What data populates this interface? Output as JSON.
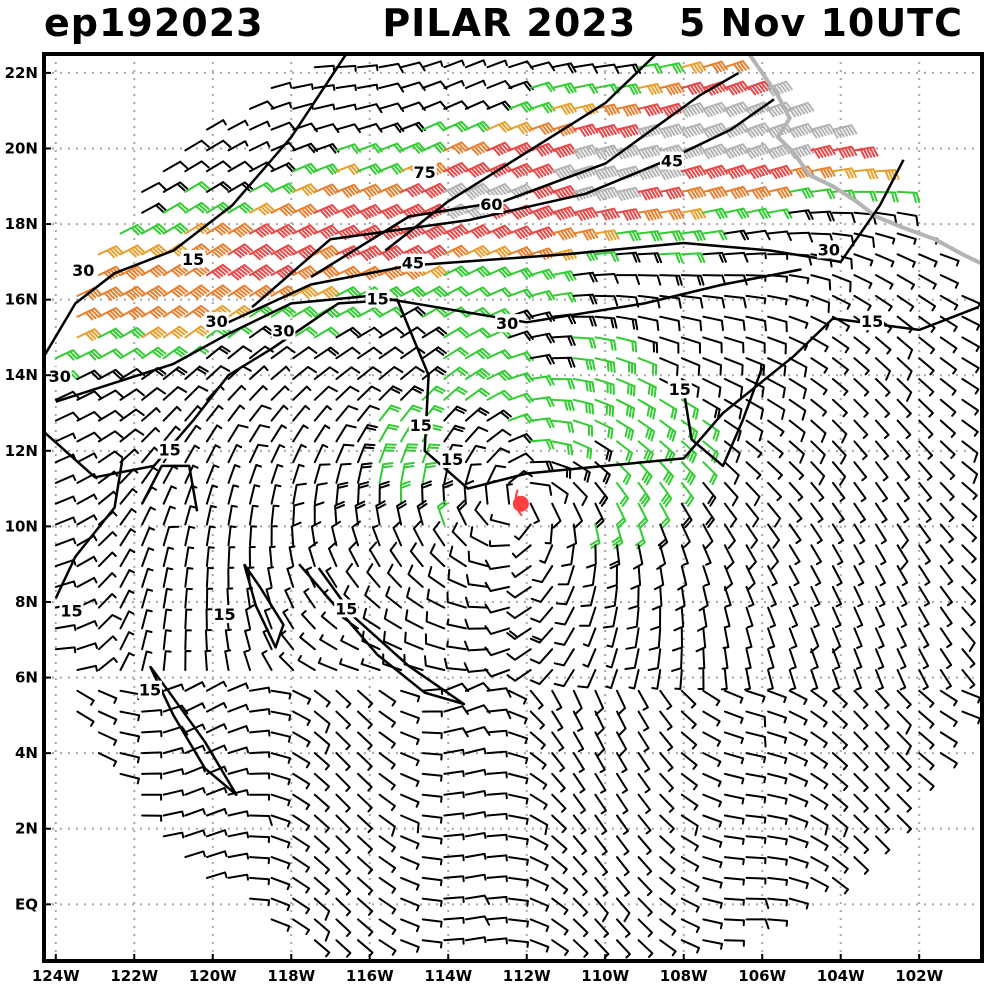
{
  "header": {
    "storm_id": "ep192023",
    "title": "PILAR 2023   5 Nov 10UTC"
  },
  "map": {
    "lon_range": [
      -124.3,
      -100.4
    ],
    "lat_range": [
      -1.5,
      22.5
    ],
    "lon_ticks": [
      {
        "value": -124,
        "label": "124W"
      },
      {
        "value": -122,
        "label": "122W"
      },
      {
        "value": -120,
        "label": "120W"
      },
      {
        "value": -118,
        "label": "118W"
      },
      {
        "value": -116,
        "label": "116W"
      },
      {
        "value": -114,
        "label": "114W"
      },
      {
        "value": -112,
        "label": "112W"
      },
      {
        "value": -110,
        "label": "110W"
      },
      {
        "value": -108,
        "label": "108W"
      },
      {
        "value": -106,
        "label": "106W"
      },
      {
        "value": -104,
        "label": "104W"
      },
      {
        "value": -102,
        "label": "102W"
      }
    ],
    "lat_ticks": [
      {
        "value": 22,
        "label": "22N"
      },
      {
        "value": 20,
        "label": "20N"
      },
      {
        "value": 18,
        "label": "18N"
      },
      {
        "value": 16,
        "label": "16N"
      },
      {
        "value": 14,
        "label": "14N"
      },
      {
        "value": 12,
        "label": "12N"
      },
      {
        "value": 10,
        "label": "10N"
      },
      {
        "value": 8,
        "label": "8N"
      },
      {
        "value": 6,
        "label": "6N"
      },
      {
        "value": 4,
        "label": "4N"
      },
      {
        "value": 2,
        "label": "2N"
      },
      {
        "value": 0,
        "label": "EQ"
      }
    ],
    "storm_center": {
      "lon": -112.15,
      "lat": 10.6,
      "color": "#ff4040"
    },
    "grid_on": true,
    "wind_colors": {
      "calm": "#000000",
      "ts": "#33cc33",
      "strong": "#e8a030",
      "gale": "#e88030",
      "storm": "#e84848",
      "hurricane": "#b4b4b4"
    },
    "coast_color": "#b4b4b4",
    "contour_labels": [
      {
        "text": "75",
        "lon": -114.6,
        "lat": 19.3
      },
      {
        "text": "60",
        "lon": -112.9,
        "lat": 18.45
      },
      {
        "text": "45",
        "lon": -108.3,
        "lat": 19.6
      },
      {
        "text": "45",
        "lon": -114.9,
        "lat": 16.9
      },
      {
        "text": "30",
        "lon": -123.3,
        "lat": 16.7
      },
      {
        "text": "30",
        "lon": -119.9,
        "lat": 15.35
      },
      {
        "text": "30",
        "lon": -118.2,
        "lat": 15.1
      },
      {
        "text": "30",
        "lon": -112.5,
        "lat": 15.3
      },
      {
        "text": "30",
        "lon": -104.3,
        "lat": 17.25
      },
      {
        "text": "30",
        "lon": -123.9,
        "lat": 13.9
      },
      {
        "text": "15",
        "lon": -120.5,
        "lat": 17.0
      },
      {
        "text": "15",
        "lon": -115.8,
        "lat": 15.95
      },
      {
        "text": "15",
        "lon": -103.2,
        "lat": 15.35
      },
      {
        "text": "15",
        "lon": -108.1,
        "lat": 13.55
      },
      {
        "text": "15",
        "lon": -114.7,
        "lat": 12.6
      },
      {
        "text": "15",
        "lon": -113.9,
        "lat": 11.7
      },
      {
        "text": "15",
        "lon": -121.1,
        "lat": 11.95
      },
      {
        "text": "15",
        "lon": -123.6,
        "lat": 7.7
      },
      {
        "text": "15",
        "lon": -119.7,
        "lat": 7.6
      },
      {
        "text": "15",
        "lon": -116.6,
        "lat": 7.75
      },
      {
        "text": "15",
        "lon": -121.6,
        "lat": 5.6
      }
    ]
  }
}
